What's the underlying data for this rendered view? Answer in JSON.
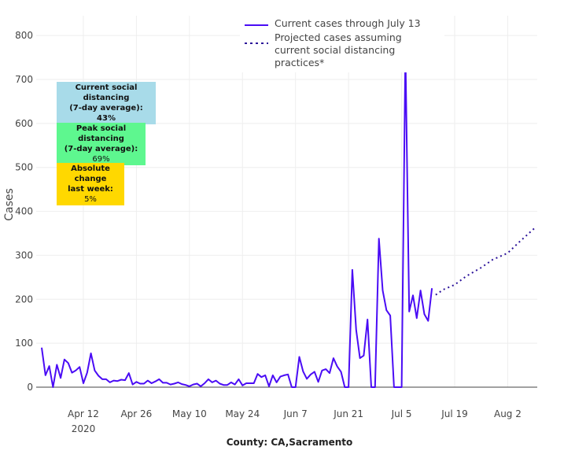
{
  "chart_data": {
    "type": "line",
    "title": "",
    "xlabel": "County: CA,Sacramento",
    "ylabel": "Cases",
    "ylim": [
      0,
      845
    ],
    "yticks": [
      0,
      100,
      200,
      300,
      400,
      500,
      600,
      700,
      800
    ],
    "x_start_date": "2020-04-01",
    "xlim_days": [
      -1.45,
      130.8
    ],
    "xticks": [
      {
        "day": 11,
        "label": "Apr 12",
        "sublabel": "2020"
      },
      {
        "day": 25,
        "label": "Apr 26"
      },
      {
        "day": 39,
        "label": "May 10"
      },
      {
        "day": 53,
        "label": "May 24"
      },
      {
        "day": 67,
        "label": "Jun 7"
      },
      {
        "day": 81,
        "label": "Jun 21"
      },
      {
        "day": 95,
        "label": "Jul 5"
      },
      {
        "day": 109,
        "label": "Jul 19"
      },
      {
        "day": 123,
        "label": "Aug 2"
      }
    ],
    "grid": true,
    "legend_position": "top-center",
    "series": [
      {
        "name": "Current cases through July 13",
        "style": "solid",
        "color": "#4a0cf5",
        "x_days_start": 0,
        "values": [
          90,
          27,
          48,
          0,
          51,
          21,
          63,
          55,
          33,
          38,
          46,
          9,
          33,
          77,
          38,
          26,
          18,
          18,
          11,
          15,
          14,
          17,
          16,
          32,
          6,
          12,
          8,
          8,
          15,
          9,
          13,
          18,
          10,
          10,
          6,
          8,
          11,
          7,
          5,
          2,
          6,
          8,
          2,
          9,
          18,
          11,
          15,
          8,
          5,
          5,
          11,
          6,
          18,
          4,
          9,
          9,
          9,
          30,
          23,
          27,
          2,
          27,
          11,
          24,
          27,
          29,
          0,
          0,
          69,
          36,
          19,
          29,
          35,
          12,
          38,
          41,
          32,
          66,
          47,
          35,
          0,
          0,
          267,
          130,
          66,
          72,
          154,
          0,
          0,
          338,
          220,
          175,
          163,
          0,
          0,
          0,
          765,
          172,
          209,
          157,
          220,
          166,
          151,
          225
        ]
      },
      {
        "name": "Projected cases assuming current social distancing practices*",
        "style": "dotted",
        "color": "#2a1199",
        "x_days": [
          104,
          106,
          109,
          112,
          116,
          119,
          123,
          126,
          130.5
        ],
        "values": [
          210,
          222,
          233,
          252,
          272,
          290,
          305,
          330,
          365
        ]
      }
    ]
  },
  "annotations": [
    {
      "line1": "Current social distancing",
      "line2": "(7-day average):",
      "value": "43%",
      "color": "#a8dbe9"
    },
    {
      "line1": "Peak social distancing",
      "line2": "(7-day average):",
      "value": "69%",
      "color": "#5ef78f"
    },
    {
      "line1": "Absolute change",
      "line2": "last week:",
      "value": "5%",
      "color": "#ffd800"
    }
  ]
}
